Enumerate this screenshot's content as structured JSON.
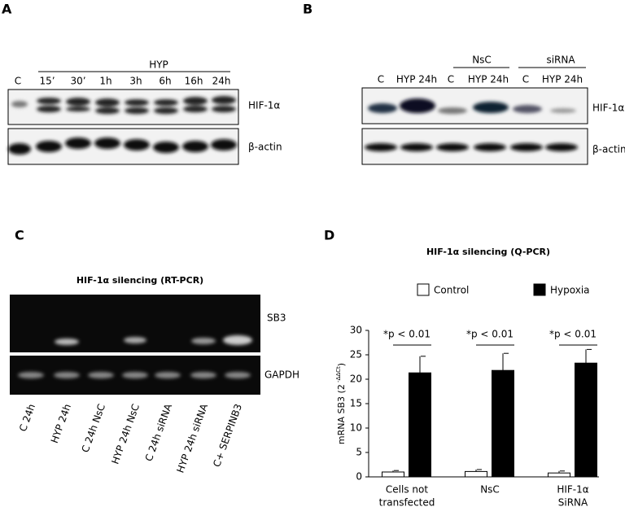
{
  "panels": {
    "a": {
      "letter": "A",
      "group": "HYP",
      "lanes": [
        "C",
        "15’",
        "30’",
        "1h",
        "3h",
        "6h",
        "16h",
        "24h"
      ],
      "rows": [
        "HIF-1α",
        "β-actin"
      ]
    },
    "b": {
      "letter": "B",
      "groups": [
        "NsC",
        "siRNA"
      ],
      "lanes": [
        "C",
        "HYP 24h",
        "C",
        "HYP 24h",
        "C",
        "HYP 24h"
      ],
      "rows": [
        "HIF-1α",
        "β-actin"
      ]
    },
    "c": {
      "letter": "C",
      "title": "HIF-1α  silencing   (RT-PCR)",
      "rows": [
        "SB3",
        "GAPDH"
      ],
      "lanes": [
        "C 24h",
        "HYP 24h",
        "C 24h NsC",
        "HYP 24h NsC",
        "C 24h siRNA",
        "HYP 24h siRNA",
        "C+ SERPINB3"
      ]
    },
    "d": {
      "letter": "D"
    }
  },
  "chart_data": {
    "type": "bar",
    "title": "HIF-1α  silencing  (Q-PCR)",
    "ylabel": [
      "mRNA SB3 (2",
      " -ΔΔCt",
      ")"
    ],
    "categories": [
      [
        "Cells not",
        "transfected"
      ],
      [
        "NsC"
      ],
      [
        "HIF-1α",
        "SiRNA"
      ]
    ],
    "series": [
      {
        "name": "Control",
        "color": "#ffffff",
        "values": [
          1.0,
          1.1,
          0.8
        ],
        "errors": [
          0.3,
          0.4,
          0.4
        ]
      },
      {
        "name": "Hypoxia",
        "color": "#000000",
        "values": [
          21.3,
          21.8,
          23.3
        ],
        "errors": [
          3.4,
          3.5,
          2.8
        ]
      }
    ],
    "annotations": [
      "*p < 0.01",
      "*p < 0.01",
      "*p < 0.01"
    ],
    "ylim": [
      0,
      30
    ],
    "yticks": [
      0,
      5,
      10,
      15,
      20,
      25,
      30
    ],
    "legend": "top"
  }
}
